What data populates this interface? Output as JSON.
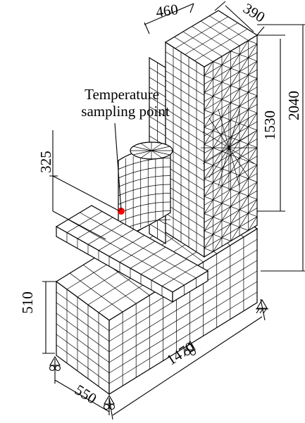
{
  "annotation": {
    "lines": [
      "Temperature",
      "sampling point"
    ]
  },
  "dimensions": [
    460,
    390,
    325,
    1530,
    2040,
    510,
    1470,
    550
  ]
}
